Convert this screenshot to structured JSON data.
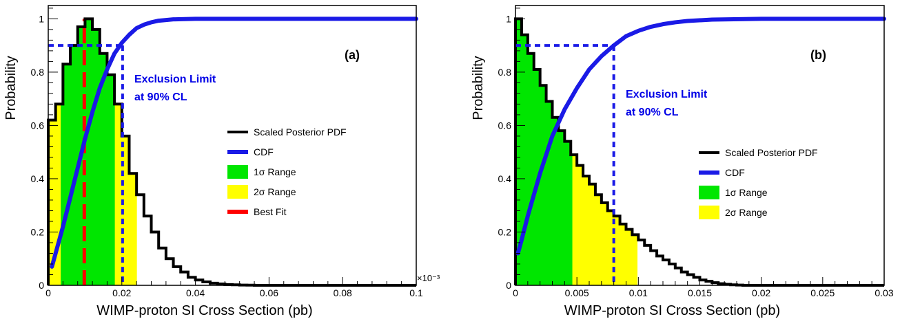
{
  "chart_data": [
    {
      "type": "histogram",
      "panel_label": "(a)",
      "xlabel": "WIMP-proton SI Cross Section (pb)",
      "ylabel": "Probability",
      "x_exponent_label": "×10⁻³",
      "xlim": [
        0,
        0.1
      ],
      "ylim": [
        0,
        1.05
      ],
      "x_ticks": [
        0,
        0.02,
        0.04,
        0.06,
        0.08,
        0.1
      ],
      "x_tick_labels": [
        "0",
        "0.02",
        "0.04",
        "0.06",
        "0.08",
        "0.1"
      ],
      "y_ticks": [
        0,
        0.2,
        0.4,
        0.6,
        0.8,
        1
      ],
      "y_tick_labels": [
        "0",
        "0.2",
        "0.4",
        "0.6",
        "0.8",
        "1"
      ],
      "bin_width": 0.002,
      "posterior_pdf": [
        0.62,
        0.68,
        0.83,
        0.9,
        0.97,
        1.0,
        0.96,
        0.87,
        0.79,
        0.68,
        0.56,
        0.42,
        0.34,
        0.26,
        0.2,
        0.14,
        0.1,
        0.07,
        0.05,
        0.03,
        0.02,
        0.013,
        0.008,
        0.005,
        0.003,
        0.002,
        0.001,
        0.0005,
        0,
        0,
        0,
        0,
        0,
        0,
        0,
        0,
        0,
        0,
        0,
        0,
        0,
        0,
        0,
        0,
        0,
        0,
        0,
        0,
        0,
        0
      ],
      "one_sigma_range": [
        0.0034,
        0.018
      ],
      "two_sigma_range": [
        0,
        0.024
      ],
      "best_fit": 0.0098,
      "cdf": {
        "x": [
          0.001,
          0.002,
          0.004,
          0.006,
          0.008,
          0.01,
          0.012,
          0.014,
          0.016,
          0.018,
          0.02,
          0.022,
          0.024,
          0.026,
          0.028,
          0.03,
          0.034,
          0.04,
          0.05,
          0.1
        ],
        "y": [
          0.07,
          0.12,
          0.22,
          0.33,
          0.44,
          0.55,
          0.65,
          0.74,
          0.81,
          0.87,
          0.91,
          0.94,
          0.965,
          0.978,
          0.987,
          0.993,
          0.998,
          1.0,
          1.0,
          1.0
        ]
      },
      "exclusion_limit": {
        "x": 0.0202,
        "y": 0.9,
        "label_line1": "Exclusion Limit",
        "label_line2": "at 90% CL"
      },
      "legend": [
        {
          "label": "Scaled Posterior PDF",
          "kind": "line",
          "color": "#000000"
        },
        {
          "label": "CDF",
          "kind": "line",
          "color": "#1a1ae6"
        },
        {
          "label": "1σ Range",
          "kind": "box",
          "color": "#00e600"
        },
        {
          "label": "2σ Range",
          "kind": "box",
          "color": "#ffff00"
        },
        {
          "label": "Best Fit",
          "kind": "line",
          "color": "#ff0000"
        }
      ]
    },
    {
      "type": "histogram",
      "panel_label": "(b)",
      "xlabel": "WIMP-proton SI Cross Section (pb)",
      "ylabel": "Probability",
      "x_exponent_label": "",
      "xlim": [
        0,
        0.03
      ],
      "ylim": [
        0,
        1.05
      ],
      "x_ticks": [
        0,
        0.005,
        0.01,
        0.015,
        0.02,
        0.025,
        0.03
      ],
      "x_tick_labels": [
        "0",
        "0.005",
        "0.01",
        "0.015",
        "0.02",
        "0.025",
        "0.03"
      ],
      "y_ticks": [
        0,
        0.2,
        0.4,
        0.6,
        0.8,
        1
      ],
      "y_tick_labels": [
        "0",
        "0.2",
        "0.4",
        "0.6",
        "0.8",
        "1"
      ],
      "bin_width": 0.0005,
      "posterior_pdf": [
        1.0,
        0.94,
        0.87,
        0.81,
        0.75,
        0.69,
        0.63,
        0.58,
        0.54,
        0.49,
        0.45,
        0.41,
        0.38,
        0.34,
        0.31,
        0.28,
        0.26,
        0.23,
        0.21,
        0.19,
        0.17,
        0.15,
        0.13,
        0.11,
        0.095,
        0.08,
        0.065,
        0.05,
        0.04,
        0.03,
        0.02,
        0.015,
        0.01,
        0.006,
        0.004,
        0.002,
        0.001,
        0,
        0,
        0,
        0,
        0,
        0,
        0,
        0,
        0,
        0,
        0,
        0,
        0,
        0,
        0,
        0,
        0,
        0,
        0,
        0,
        0,
        0,
        0
      ],
      "one_sigma_range": [
        0,
        0.0046
      ],
      "two_sigma_range": [
        0,
        0.0099
      ],
      "cdf": {
        "x": [
          0.0002,
          0.0005,
          0.001,
          0.0015,
          0.002,
          0.0025,
          0.003,
          0.004,
          0.005,
          0.006,
          0.007,
          0.008,
          0.009,
          0.01,
          0.011,
          0.012,
          0.013,
          0.014,
          0.016,
          0.02,
          0.03
        ],
        "y": [
          0.12,
          0.17,
          0.26,
          0.34,
          0.42,
          0.49,
          0.56,
          0.66,
          0.74,
          0.81,
          0.86,
          0.9,
          0.935,
          0.955,
          0.97,
          0.98,
          0.987,
          0.992,
          0.997,
          1.0,
          1.0
        ]
      },
      "exclusion_limit": {
        "x": 0.008,
        "y": 0.9,
        "label_line1": "Exclusion Limit",
        "label_line2": "at 90% CL"
      },
      "legend": [
        {
          "label": "Scaled Posterior PDF",
          "kind": "line",
          "color": "#000000"
        },
        {
          "label": "CDF",
          "kind": "line",
          "color": "#1a1ae6"
        },
        {
          "label": "1σ Range",
          "kind": "box",
          "color": "#00e600"
        },
        {
          "label": "2σ Range",
          "kind": "box",
          "color": "#ffff00"
        }
      ]
    }
  ]
}
